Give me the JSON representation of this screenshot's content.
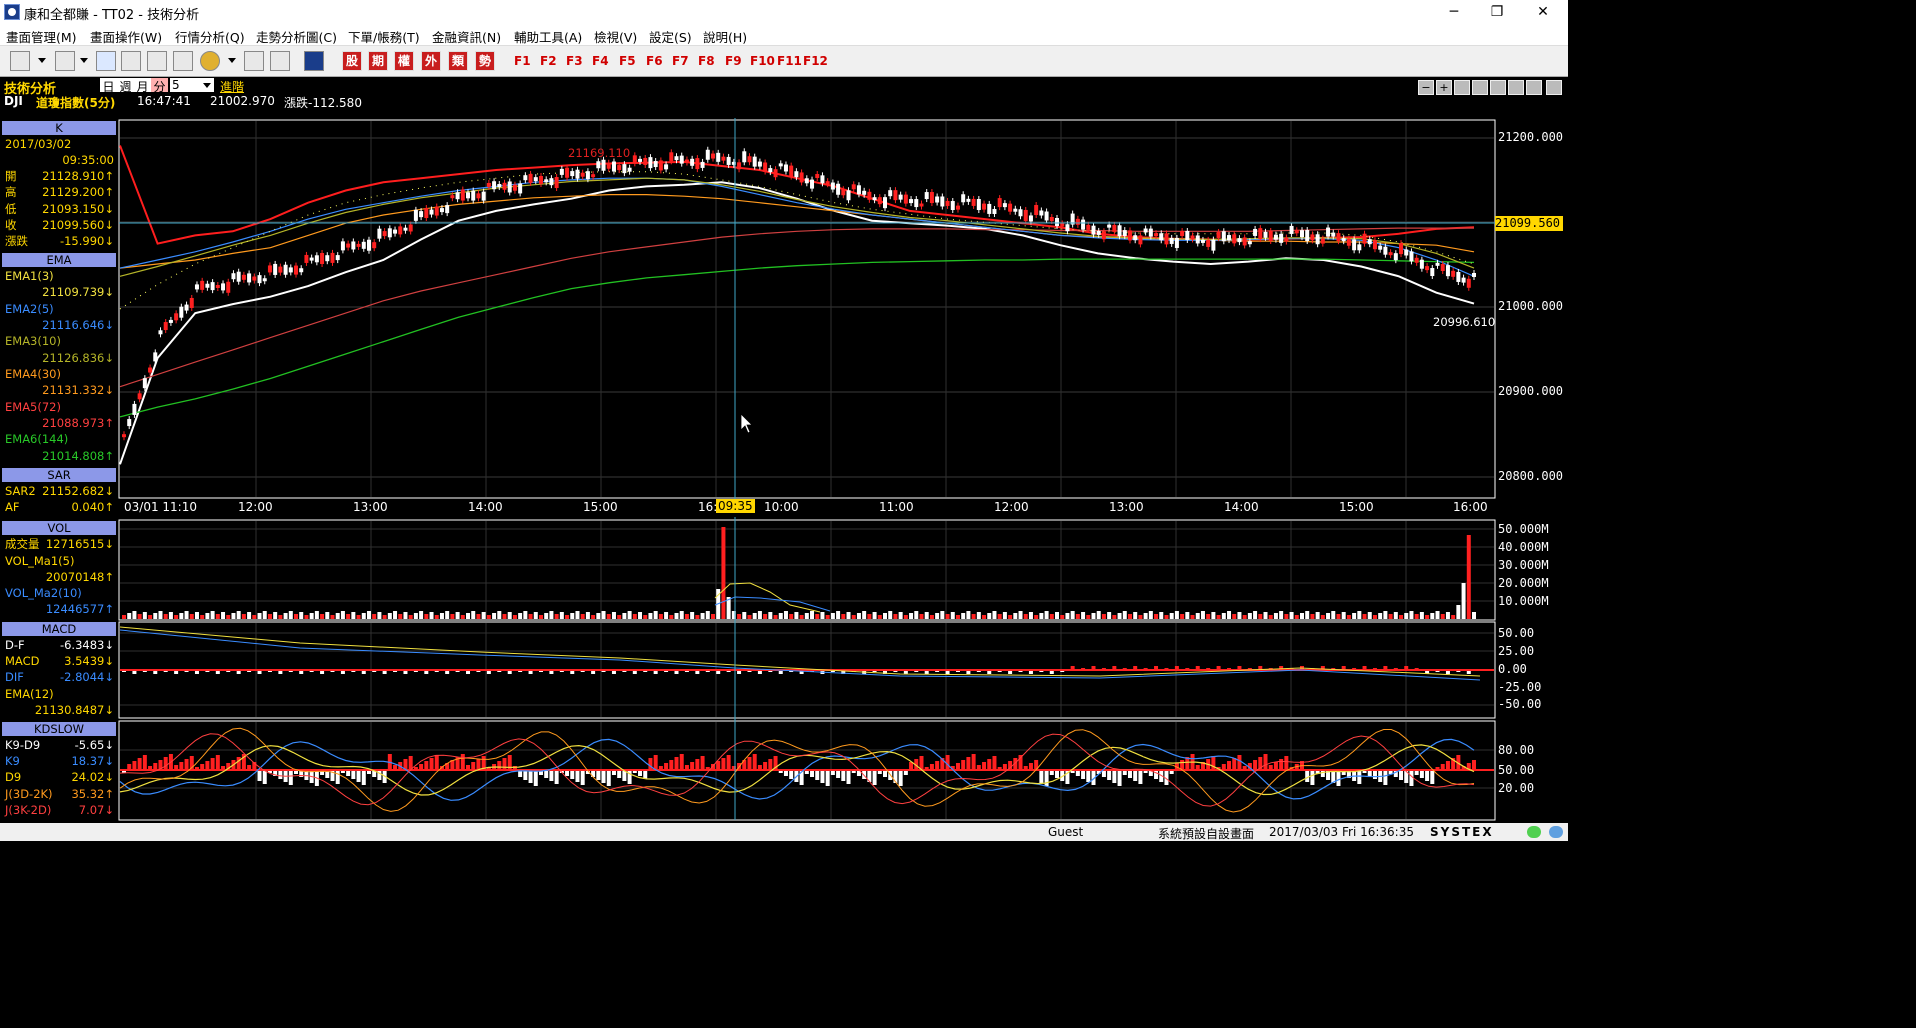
{
  "window": {
    "title": "康和全都賺 - TT02 - 技術分析",
    "min": "─",
    "max": "❐",
    "close": "✕"
  },
  "menu": [
    "畫面管理(M)",
    "畫面操作(W)",
    "行情分析(Q)",
    "走勢分析圖(C)",
    "下單/帳務(T)",
    "金融資訊(N)",
    "輔助工具(A)",
    "檢視(V)",
    "設定(S)",
    "說明(H)"
  ],
  "toolbar": {
    "red_buttons": [
      "股",
      "期",
      "權",
      "外",
      "類",
      "勢"
    ],
    "fkeys": [
      "F1",
      "F2",
      "F3",
      "F4",
      "F5",
      "F6",
      "F7",
      "F8",
      "F9",
      "F10",
      "F11",
      "F12"
    ]
  },
  "header": {
    "module": "技術分析",
    "period_tabs": [
      "日",
      "週",
      "月",
      "分"
    ],
    "period_value": "5",
    "advanced": "進階",
    "symbol": "DJI",
    "name": "道瓊指數(5分)",
    "time": "16:47:41",
    "price": "21002.970",
    "change": "漲跌-112.580"
  },
  "panels": {
    "k": {
      "title": "K",
      "date": "2017/03/02",
      "time": "09:35:00",
      "rows": [
        {
          "label": "開",
          "value": "21128.910↑"
        },
        {
          "label": "高",
          "value": "21129.200↑"
        },
        {
          "label": "低",
          "value": "21093.150↓"
        },
        {
          "label": "收",
          "value": "21099.560↓"
        },
        {
          "label": "漲跌",
          "value": "-15.990↓"
        }
      ]
    },
    "ema": {
      "title": "EMA",
      "rows": [
        {
          "label": "EMA1(3)",
          "value": "21109.739↓",
          "color": "#f0e040"
        },
        {
          "label": "EMA2(5)",
          "value": "21116.646↓",
          "color": "#3a8cff"
        },
        {
          "label": "EMA3(10)",
          "value": "21126.836↓",
          "color": "#b4b428"
        },
        {
          "label": "EMA4(30)",
          "value": "21131.332↓",
          "color": "#ff9a1e"
        },
        {
          "label": "EMA5(72)",
          "value": "21088.973↑",
          "color": "#ff4040"
        },
        {
          "label": "EMA6(144)",
          "value": "21014.808↑",
          "color": "#28c828"
        }
      ]
    },
    "sar": {
      "title": "SAR",
      "rows": [
        {
          "label": "SAR2",
          "value": "21152.682↓"
        },
        {
          "label": "AF",
          "value": "0.040↑"
        }
      ]
    },
    "vol": {
      "title": "VOL",
      "rows": [
        {
          "label": "成交量",
          "value": "12716515↓"
        },
        {
          "label": "VOL_Ma1(5)",
          "value": "20070148↑"
        },
        {
          "label": "VOL_Ma2(10)",
          "value": "12446577↑"
        }
      ]
    },
    "macd": {
      "title": "MACD",
      "rows": [
        {
          "label": "D-F",
          "value": "-6.3483↓"
        },
        {
          "label": "MACD",
          "value": "3.5439↓"
        },
        {
          "label": "DIF",
          "value": "-2.8044↓"
        },
        {
          "label": "EMA(12)",
          "value": "21130.8487↓"
        }
      ]
    },
    "kd": {
      "title": "KDSLOW",
      "rows": [
        {
          "label": "K9-D9",
          "value": "-5.65↓"
        },
        {
          "label": "K9",
          "value": "18.37↓"
        },
        {
          "label": "D9",
          "value": "24.02↓"
        },
        {
          "label": "J(3D-2K)",
          "value": "35.32↑"
        },
        {
          "label": "J(3K-2D)",
          "value": "7.07↓"
        }
      ]
    }
  },
  "price_axis": [
    "21200.000",
    "21100.000",
    "21000.000",
    "20900.000",
    "20800.000"
  ],
  "price_current": "21099.560",
  "price_hi_label": "21169.110",
  "price_lo_label": "20996.610",
  "time_axis": [
    "03/01 11:10",
    "12:00",
    "13:00",
    "14:00",
    "15:00",
    "16:",
    "09:35",
    "10:00",
    "11:00",
    "12:00",
    "13:00",
    "14:00",
    "15:00",
    "16:00"
  ],
  "vol_axis": [
    "50.000M",
    "40.000M",
    "30.000M",
    "20.000M",
    "10.000M"
  ],
  "macd_axis": [
    "50.00",
    "25.00",
    "0.00",
    "-25.00",
    "-50.00"
  ],
  "kd_axis": [
    "80.00",
    "50.00",
    "20.00"
  ],
  "status": {
    "user": "Guest",
    "layout": "系統預設自設畫面",
    "datetime": "2017/03/03 Fri 16:36:35",
    "brand": "SYSTEX"
  },
  "chart_data": {
    "type": "line",
    "title": "道瓊指數(5分)",
    "series": [
      {
        "name": "收",
        "values": [
          20800,
          20930,
          20985,
          20996,
          21005,
          21018,
          21035,
          21050,
          21075,
          21098,
          21110,
          21118,
          21125,
          21135,
          21140,
          21142,
          21145,
          21138,
          21125,
          21110,
          21098,
          21095,
          21092,
          21088,
          21080,
          21068,
          21058,
          21052,
          21048,
          21045,
          21048,
          21052,
          21050,
          21042,
          21030,
          21010,
          20996.61
        ]
      },
      {
        "name": "EMA6(144)",
        "values": [
          20858,
          20870,
          20880,
          20892,
          20905,
          20920,
          20935,
          20950,
          20965,
          20980,
          20992,
          21004,
          21015,
          21022,
          21028,
          21032,
          21036,
          21040,
          21043,
          21045,
          21047,
          21048,
          21049,
          21050,
          21050,
          21051,
          21051,
          21051,
          21051,
          21051,
          21051,
          21051,
          21051,
          21050,
          21049,
          21048,
          21047
        ]
      }
    ],
    "ylim": [
      20760,
      21220
    ]
  }
}
